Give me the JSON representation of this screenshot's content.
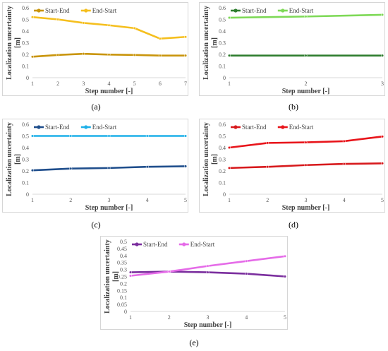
{
  "chart_data": [
    {
      "type": "line",
      "panel_label": "(a)",
      "x": [
        1,
        2,
        3,
        4,
        5,
        6,
        7
      ],
      "xlabel": "Step number [-]",
      "ylabel": "Localization uncertainty [m]",
      "ylim": [
        0,
        0.6
      ],
      "yticks": [
        "0",
        "0.1",
        "0.2",
        "0.3",
        "0.4",
        "0.5",
        "0.6"
      ],
      "grid": false,
      "legend": "top-left",
      "series": [
        {
          "name": "Start-End",
          "color": "#c9950c",
          "values": [
            0.18,
            0.195,
            0.205,
            0.198,
            0.195,
            0.19,
            0.19
          ]
        },
        {
          "name": "End-Start",
          "color": "#f5bf1e",
          "values": [
            0.52,
            0.5,
            0.47,
            0.45,
            0.425,
            0.335,
            0.35
          ]
        }
      ]
    },
    {
      "type": "line",
      "panel_label": "(b)",
      "x": [
        1,
        2,
        3
      ],
      "xlabel": "Step number [-]",
      "ylabel": "Localization uncertainty [m]",
      "ylim": [
        0,
        0.6
      ],
      "yticks": [
        "0",
        "0.1",
        "0.2",
        "0.3",
        "0.4",
        "0.5",
        "0.6"
      ],
      "grid": false,
      "legend": "top-left",
      "series": [
        {
          "name": "Start-End",
          "color": "#2e7d2e",
          "values": [
            0.19,
            0.19,
            0.19
          ]
        },
        {
          "name": "End-Start",
          "color": "#7ed957",
          "values": [
            0.515,
            0.525,
            0.54
          ]
        }
      ]
    },
    {
      "type": "line",
      "panel_label": "(c)",
      "x": [
        1,
        2,
        3,
        4,
        5
      ],
      "xlabel": "Step number [-]",
      "ylabel": "Localization uncertainty [m]",
      "ylim": [
        0,
        0.6
      ],
      "yticks": [
        "0",
        "0.1",
        "0.2",
        "0.3",
        "0.4",
        "0.5",
        "0.6"
      ],
      "grid": false,
      "legend": "top-left",
      "series": [
        {
          "name": "Start-End",
          "color": "#1f4e8c",
          "values": [
            0.205,
            0.22,
            0.225,
            0.235,
            0.24
          ]
        },
        {
          "name": "End-Start",
          "color": "#1fb0e8",
          "values": [
            0.5,
            0.5,
            0.5,
            0.5,
            0.5
          ]
        }
      ]
    },
    {
      "type": "line",
      "panel_label": "(d)",
      "x": [
        1,
        2,
        3,
        4,
        5
      ],
      "xlabel": "Step number [-]",
      "ylabel": "Localization uncertainty [m]",
      "ylim": [
        0,
        0.6
      ],
      "yticks": [
        "0",
        "0.1",
        "0.2",
        "0.3",
        "0.4",
        "0.5",
        "0.6"
      ],
      "grid": false,
      "legend": "top-left",
      "series": [
        {
          "name": "Start-End",
          "color": "#d7191c",
          "values": [
            0.225,
            0.235,
            0.25,
            0.26,
            0.265
          ]
        },
        {
          "name": "End-Start",
          "color": "#e8151b",
          "values": [
            0.4,
            0.44,
            0.445,
            0.455,
            0.495
          ]
        }
      ]
    },
    {
      "type": "line",
      "panel_label": "(e)",
      "x": [
        1,
        2,
        3,
        4,
        5
      ],
      "xlabel": "Step number [-]",
      "ylabel": "Localization uncertainty [m]",
      "ylim": [
        0,
        0.5
      ],
      "yticks": [
        "0",
        "0.05",
        "0.1",
        "0.15",
        "0.2",
        "0.25",
        "0.3",
        "0.35",
        "0.4",
        "0.45",
        "0.5"
      ],
      "grid": false,
      "legend": "top-left",
      "series": [
        {
          "name": "Start-End",
          "color": "#7b2f9e",
          "values": [
            0.28,
            0.285,
            0.28,
            0.27,
            0.25
          ]
        },
        {
          "name": "End-Start",
          "color": "#e56be8",
          "values": [
            0.255,
            0.285,
            0.325,
            0.36,
            0.395
          ]
        }
      ]
    }
  ]
}
